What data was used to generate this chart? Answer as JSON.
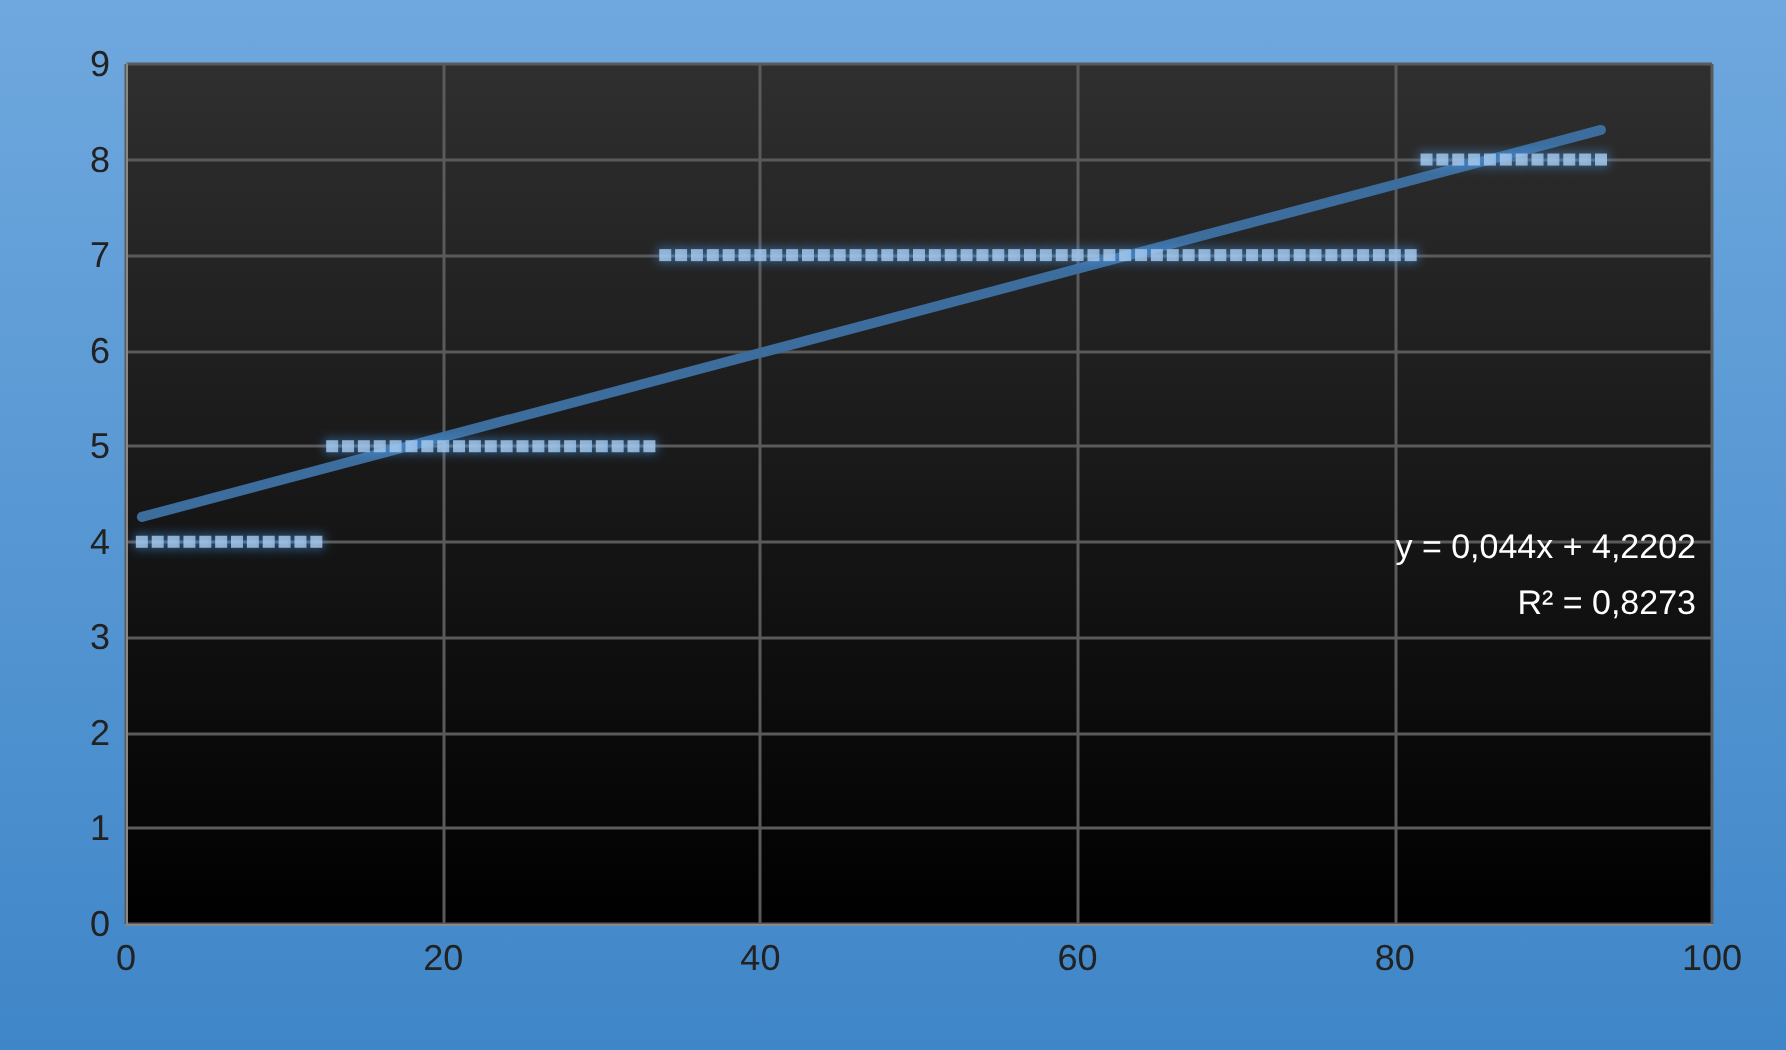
{
  "chart_data": {
    "type": "scatter",
    "grid": true,
    "xlim": [
      0,
      100
    ],
    "xticks": [
      0,
      20,
      40,
      60,
      80,
      100
    ],
    "ylim": [
      0,
      9
    ],
    "yticks": [
      0,
      1,
      2,
      3,
      4,
      5,
      6,
      7,
      8,
      9
    ],
    "annotations": [
      "y = 0,044x + 4,2202",
      "R² = 0,8273"
    ],
    "series": [
      {
        "marker": "square",
        "color": "#a9cdf0",
        "x": [
          1,
          2,
          3,
          4,
          5,
          6,
          7,
          8,
          9,
          10,
          11,
          12,
          13,
          14,
          15,
          16,
          17,
          18,
          19,
          20,
          21,
          22,
          23,
          24,
          25,
          26,
          27,
          28,
          29,
          30,
          31,
          32,
          33,
          34,
          35,
          36,
          37,
          38,
          39,
          40,
          41,
          42,
          43,
          44,
          45,
          46,
          47,
          48,
          49,
          50,
          51,
          52,
          53,
          54,
          55,
          56,
          57,
          58,
          59,
          60,
          61,
          62,
          63,
          64,
          65,
          66,
          67,
          68,
          69,
          70,
          71,
          72,
          73,
          74,
          75,
          76,
          77,
          78,
          79,
          80,
          81,
          82,
          83,
          84,
          85,
          86,
          87,
          88,
          89,
          90,
          91,
          92,
          93
        ],
        "values": [
          4,
          4,
          4,
          4,
          4,
          4,
          4,
          4,
          4,
          4,
          4,
          4,
          5,
          5,
          5,
          5,
          5,
          5,
          5,
          5,
          5,
          5,
          5,
          5,
          5,
          5,
          5,
          5,
          5,
          5,
          5,
          5,
          5,
          7,
          7,
          7,
          7,
          7,
          7,
          7,
          7,
          7,
          7,
          7,
          7,
          7,
          7,
          7,
          7,
          7,
          7,
          7,
          7,
          7,
          7,
          7,
          7,
          7,
          7,
          7,
          7,
          7,
          7,
          7,
          7,
          7,
          7,
          7,
          7,
          7,
          7,
          7,
          7,
          7,
          7,
          7,
          7,
          7,
          7,
          7,
          7,
          8,
          8,
          8,
          8,
          8,
          8,
          8,
          8,
          8,
          8,
          8,
          8
        ]
      },
      {
        "type": "line",
        "marker": "none",
        "color": "#3d6d9c",
        "line_style": "solid",
        "x": [
          1,
          93
        ],
        "values": [
          4.26,
          8.31
        ]
      }
    ]
  }
}
